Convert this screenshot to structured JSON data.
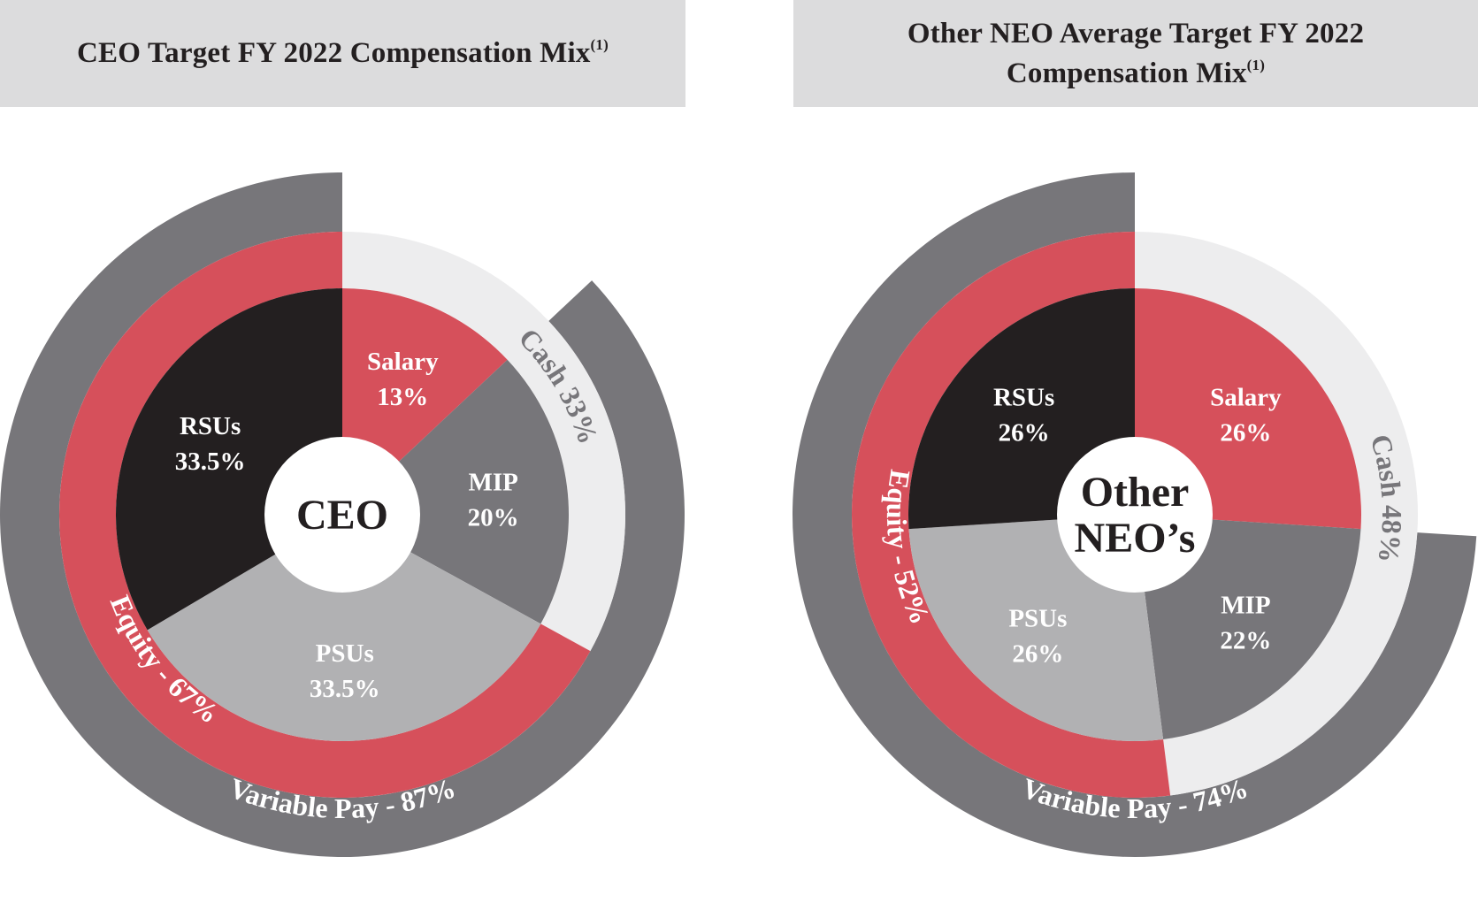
{
  "charts": [
    {
      "id": "ceo",
      "title": "CEO Target FY 2022 Compensation Mix",
      "footnote": "(1)",
      "center_lines": [
        "CEO"
      ],
      "inner_segments": [
        {
          "name": "Salary",
          "value_label": "13%",
          "color": "#d6505b"
        },
        {
          "name": "MIP",
          "value_label": "20%",
          "color": "#77767a"
        },
        {
          "name": "PSUs",
          "value_label": "33.5%",
          "color": "#b1b1b3"
        },
        {
          "name": "RSUs",
          "value_label": "33.5%",
          "color": "#231f20"
        }
      ],
      "middle_ring": {
        "cash_label": "Cash 33%",
        "equity_label": "Equity - 67%",
        "cash_color": "#ededee",
        "equity_color": "#d6505b"
      },
      "outer_ring": {
        "label": "Variable Pay - 87%",
        "color": "#77767a"
      }
    },
    {
      "id": "neo",
      "title_lines": [
        "Other NEO Average Target FY 2022",
        "Compensation Mix"
      ],
      "footnote": "(1)",
      "center_lines": [
        "Other",
        "NEO’s"
      ],
      "inner_segments": [
        {
          "name": "Salary",
          "value_label": "26%",
          "color": "#d6505b"
        },
        {
          "name": "MIP",
          "value_label": "22%",
          "color": "#77767a"
        },
        {
          "name": "PSUs",
          "value_label": "26%",
          "color": "#b1b1b3"
        },
        {
          "name": "RSUs",
          "value_label": "26%",
          "color": "#231f20"
        }
      ],
      "middle_ring": {
        "cash_label": "Cash 48%",
        "equity_label": "Equity - 52%",
        "cash_color": "#ededee",
        "equity_color": "#d6505b"
      },
      "outer_ring": {
        "label": "Variable Pay - 74%",
        "color": "#77767a"
      }
    }
  ],
  "chart_data": [
    {
      "type": "pie",
      "title": "CEO Target FY 2022 Compensation Mix",
      "categories": [
        "Salary",
        "MIP",
        "PSUs",
        "RSUs"
      ],
      "values": [
        13,
        20,
        33.5,
        33.5
      ],
      "rings": [
        {
          "name": "Cash",
          "value": 33
        },
        {
          "name": "Equity",
          "value": 67
        },
        {
          "name": "Variable Pay",
          "value": 87
        }
      ]
    },
    {
      "type": "pie",
      "title": "Other NEO Average Target FY 2022 Compensation Mix",
      "categories": [
        "Salary",
        "MIP",
        "PSUs",
        "RSUs"
      ],
      "values": [
        26,
        22,
        26,
        26
      ],
      "rings": [
        {
          "name": "Cash",
          "value": 48
        },
        {
          "name": "Equity",
          "value": 52
        },
        {
          "name": "Variable Pay",
          "value": 74
        }
      ]
    }
  ]
}
